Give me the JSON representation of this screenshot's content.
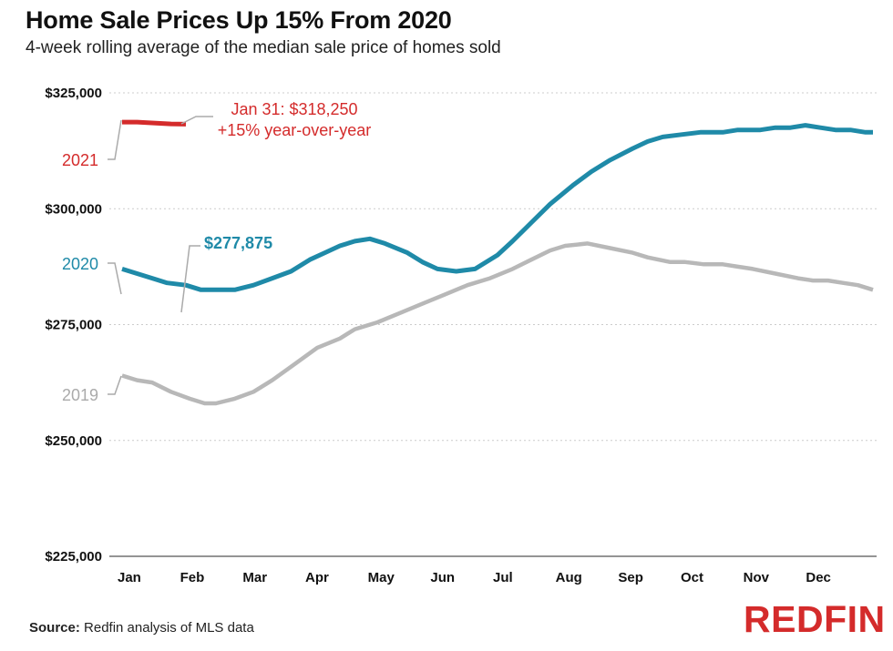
{
  "chart_data": {
    "type": "line",
    "title": "Home Sale Prices Up 15% From 2020",
    "subtitle": "4-week rolling average of the median sale price of homes sold",
    "ylim": [
      225000,
      325000
    ],
    "yticks": [
      325000,
      300000,
      275000,
      250000,
      225000
    ],
    "ytick_labels": [
      "$325,000",
      "$300,000",
      "$275,000",
      "$250,000",
      "$225,000"
    ],
    "xlim": [
      0,
      1
    ],
    "xticks": [
      0,
      0.0833,
      0.1667,
      0.25,
      0.3333,
      0.4167,
      0.5,
      0.5833,
      0.6667,
      0.75,
      0.8333,
      0.9167
    ],
    "xtick_labels": [
      "Jan",
      "Feb",
      "Mar",
      "Apr",
      "May",
      "Jun",
      "Jul",
      "Aug",
      "Sep",
      "Oct",
      "Nov",
      "Dec"
    ],
    "series": [
      {
        "name": "2019",
        "color": "#b8b8b8",
        "x": [
          0,
          0.02,
          0.04,
          0.065,
          0.09,
          0.11,
          0.125,
          0.15,
          0.175,
          0.2,
          0.23,
          0.26,
          0.29,
          0.31,
          0.34,
          0.37,
          0.4,
          0.43,
          0.46,
          0.49,
          0.52,
          0.545,
          0.57,
          0.59,
          0.62,
          0.65,
          0.68,
          0.7,
          0.73,
          0.75,
          0.775,
          0.8,
          0.82,
          0.84,
          0.87,
          0.9,
          0.92,
          0.94,
          0.96,
          0.98,
          1
        ],
        "values": [
          264000,
          263000,
          262500,
          260500,
          259000,
          258000,
          258000,
          259000,
          260500,
          263000,
          266500,
          270000,
          272000,
          274000,
          275500,
          277500,
          279500,
          281500,
          283500,
          285000,
          287000,
          289000,
          291000,
          292000,
          292500,
          291500,
          290500,
          289500,
          288500,
          288500,
          288000,
          288000,
          287500,
          287000,
          286000,
          285000,
          284500,
          284500,
          284000,
          283500,
          282500
        ]
      },
      {
        "name": "2020",
        "color": "#1f8aa8",
        "x": [
          0,
          0.02,
          0.04,
          0.06,
          0.085,
          0.105,
          0.125,
          0.15,
          0.175,
          0.2,
          0.225,
          0.25,
          0.27,
          0.29,
          0.31,
          0.33,
          0.35,
          0.38,
          0.4,
          0.42,
          0.445,
          0.47,
          0.5,
          0.52,
          0.545,
          0.57,
          0.6,
          0.625,
          0.65,
          0.68,
          0.7,
          0.72,
          0.745,
          0.77,
          0.8,
          0.82,
          0.85,
          0.87,
          0.89,
          0.91,
          0.93,
          0.95,
          0.97,
          0.99,
          1
        ],
        "values": [
          287000,
          286000,
          285000,
          284000,
          283500,
          282500,
          282500,
          282500,
          283500,
          285000,
          286500,
          289000,
          290500,
          292000,
          293000,
          293500,
          292500,
          290500,
          288500,
          287000,
          286500,
          287000,
          290000,
          293000,
          297000,
          301000,
          305000,
          308000,
          310500,
          313000,
          314500,
          315500,
          316000,
          316500,
          316500,
          317000,
          317000,
          317500,
          317500,
          318000,
          317500,
          317000,
          317000,
          316500,
          316500
        ]
      },
      {
        "name": "2021",
        "color": "#d42b2b",
        "x": [
          0,
          0.02,
          0.045,
          0.065,
          0.085
        ],
        "values": [
          318700,
          318700,
          318450,
          318300,
          318250
        ]
      }
    ],
    "annotations": [
      {
        "text": "Jan 31: $318,250",
        "series": "2021"
      },
      {
        "text": "+15% year-over-year",
        "series": "2021"
      },
      {
        "text": "$277,875",
        "series": "2020"
      }
    ]
  },
  "source": {
    "label": "Source:",
    "text": "Redfin analysis of MLS data"
  },
  "logo": "REDFIN"
}
